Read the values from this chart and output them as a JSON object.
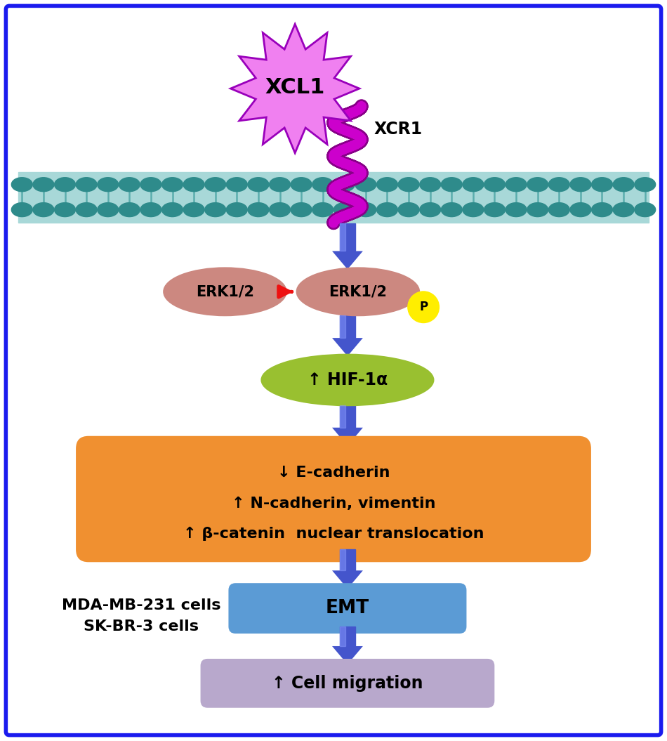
{
  "bg_color": "#ffffff",
  "border_color": "#1a1aee",
  "xcl1_color": "#f080f0",
  "xcl1_edge": "#9900bb",
  "xcl1_text": "XCL1",
  "xcr1_text": "XCR1",
  "xcr1_color": "#cc00cc",
  "xcr1_edge": "#880088",
  "membrane_color": "#2e8b8b",
  "membrane_light": "#a8d8d8",
  "erk_color": "#cc8880",
  "erk_edge": "#996655",
  "erk_text": "ERK1/2",
  "hif_color": "#99c030",
  "hif_edge": "#6a8820",
  "hif_text": "↑ HIF-1α",
  "emt_box_color": "#f09030",
  "emt_box_line1": "↓ E-cadherin",
  "emt_box_line2": "↑ N-cadherin, vimentin",
  "emt_box_line3": "↑ β-catenin  nuclear translocation",
  "emt_color": "#5b9bd5",
  "emt_edge": "#3a70aa",
  "emt_text": "EMT",
  "migration_color": "#b8a8cc",
  "migration_edge": "#8870aa",
  "migration_text": "↑ Cell migration",
  "cell_label1": "MDA-MB-231 cells",
  "cell_label2": "SK-BR-3 cells",
  "phospho_color": "#ffee00",
  "phospho_edge": "#aaaa00",
  "phospho_text": "P",
  "arrow_color_blue": "#4455cc",
  "arrow_color_red": "#ee1111",
  "fig_width": 9.5,
  "fig_height": 10.55,
  "dpi": 100
}
